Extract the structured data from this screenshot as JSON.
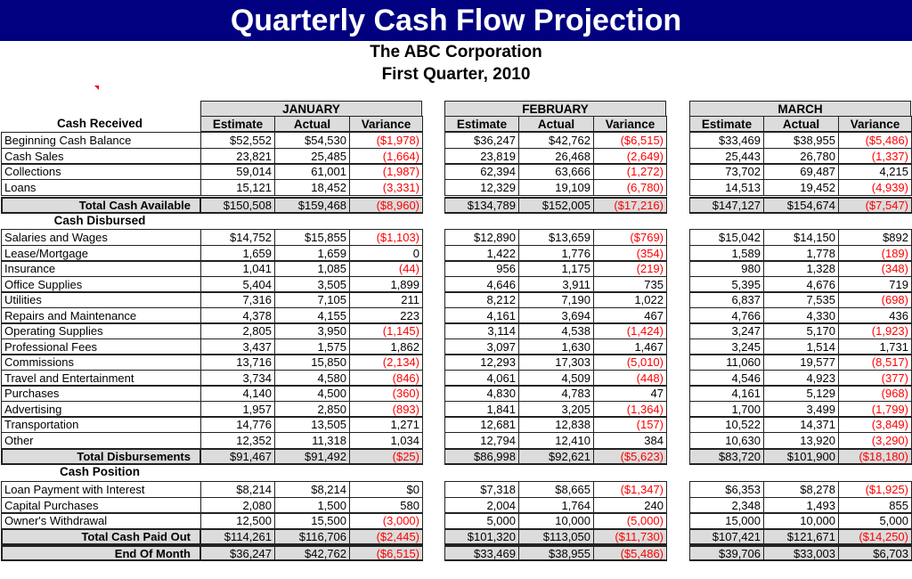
{
  "title": "Quarterly Cash Flow Projection",
  "company": "The ABC Corporation",
  "period": "First Quarter, 2010",
  "colors": {
    "title_bg": "#000080",
    "negative": "#ff0000",
    "total_bg": "#dcdcdc"
  },
  "months": [
    "JANUARY",
    "FEBRUARY",
    "MARCH"
  ],
  "subheaders": [
    "Estimate",
    "Actual",
    "Variance"
  ],
  "sections": [
    {
      "heading": "Cash Received",
      "rows": [
        {
          "label": "Beginning Cash Balance",
          "values": [
            "$52,552",
            "$54,530",
            "($1,978)",
            "$36,247",
            "$42,762",
            "($6,515)",
            "$33,469",
            "$38,955",
            "($5,486)"
          ]
        },
        {
          "label": "Cash Sales",
          "values": [
            "23,821",
            "25,485",
            "(1,664)",
            "23,819",
            "26,468",
            "(2,649)",
            "25,443",
            "26,780",
            "(1,337)"
          ]
        },
        {
          "label": "Collections",
          "values": [
            "59,014",
            "61,001",
            "(1,987)",
            "62,394",
            "63,666",
            "(1,272)",
            "73,702",
            "69,487",
            "4,215"
          ]
        },
        {
          "label": "Loans",
          "values": [
            "15,121",
            "18,452",
            "(3,331)",
            "12,329",
            "19,109",
            "(6,780)",
            "14,513",
            "19,452",
            "(4,939)"
          ]
        }
      ],
      "totals": [
        {
          "label": "Total Cash Available",
          "values": [
            "$150,508",
            "$159,468",
            "($8,960)",
            "$134,789",
            "$152,005",
            "($17,216)",
            "$147,127",
            "$154,674",
            "($7,547)"
          ]
        }
      ]
    },
    {
      "heading": "Cash Disbursed",
      "rows": [
        {
          "label": "Salaries and Wages",
          "values": [
            "$14,752",
            "$15,855",
            "($1,103)",
            "$12,890",
            "$13,659",
            "($769)",
            "$15,042",
            "$14,150",
            "$892"
          ]
        },
        {
          "label": "Lease/Mortgage",
          "values": [
            "1,659",
            "1,659",
            "0",
            "1,422",
            "1,776",
            "(354)",
            "1,589",
            "1,778",
            "(189)"
          ]
        },
        {
          "label": "Insurance",
          "values": [
            "1,041",
            "1,085",
            "(44)",
            "956",
            "1,175",
            "(219)",
            "980",
            "1,328",
            "(348)"
          ]
        },
        {
          "label": "Office Supplies",
          "values": [
            "5,404",
            "3,505",
            "1,899",
            "4,646",
            "3,911",
            "735",
            "5,395",
            "4,676",
            "719"
          ]
        },
        {
          "label": "Utilities",
          "values": [
            "7,316",
            "7,105",
            "211",
            "8,212",
            "7,190",
            "1,022",
            "6,837",
            "7,535",
            "(698)"
          ]
        },
        {
          "label": "Repairs and Maintenance",
          "values": [
            "4,378",
            "4,155",
            "223",
            "4,161",
            "3,694",
            "467",
            "4,766",
            "4,330",
            "436"
          ]
        },
        {
          "label": "Operating Supplies",
          "values": [
            "2,805",
            "3,950",
            "(1,145)",
            "3,114",
            "4,538",
            "(1,424)",
            "3,247",
            "5,170",
            "(1,923)"
          ]
        },
        {
          "label": "Professional Fees",
          "values": [
            "3,437",
            "1,575",
            "1,862",
            "3,097",
            "1,630",
            "1,467",
            "3,245",
            "1,514",
            "1,731"
          ]
        },
        {
          "label": "Commissions",
          "values": [
            "13,716",
            "15,850",
            "(2,134)",
            "12,293",
            "17,303",
            "(5,010)",
            "11,060",
            "19,577",
            "(8,517)"
          ]
        },
        {
          "label": "Travel and Entertainment",
          "values": [
            "3,734",
            "4,580",
            "(846)",
            "4,061",
            "4,509",
            "(448)",
            "4,546",
            "4,923",
            "(377)"
          ]
        },
        {
          "label": "Purchases",
          "values": [
            "4,140",
            "4,500",
            "(360)",
            "4,830",
            "4,783",
            "47",
            "4,161",
            "5,129",
            "(968)"
          ]
        },
        {
          "label": "Advertising",
          "values": [
            "1,957",
            "2,850",
            "(893)",
            "1,841",
            "3,205",
            "(1,364)",
            "1,700",
            "3,499",
            "(1,799)"
          ]
        },
        {
          "label": "Transportation",
          "values": [
            "14,776",
            "13,505",
            "1,271",
            "12,681",
            "12,838",
            "(157)",
            "10,522",
            "14,371",
            "(3,849)"
          ]
        },
        {
          "label": "Other",
          "values": [
            "12,352",
            "11,318",
            "1,034",
            "12,794",
            "12,410",
            "384",
            "10,630",
            "13,920",
            "(3,290)"
          ]
        }
      ],
      "totals": [
        {
          "label": "Total Disbursements",
          "values": [
            "$91,467",
            "$91,492",
            "($25)",
            "$86,998",
            "$92,621",
            "($5,623)",
            "$83,720",
            "$101,900",
            "($18,180)"
          ]
        }
      ]
    },
    {
      "heading": "Cash Position",
      "rows": [
        {
          "label": "Loan Payment with Interest",
          "values": [
            "$8,214",
            "$8,214",
            "$0",
            "$7,318",
            "$8,665",
            "($1,347)",
            "$6,353",
            "$8,278",
            "($1,925)"
          ]
        },
        {
          "label": "Capital Purchases",
          "values": [
            "2,080",
            "1,500",
            "580",
            "2,004",
            "1,764",
            "240",
            "2,348",
            "1,493",
            "855"
          ]
        },
        {
          "label": "Owner's Withdrawal",
          "values": [
            "12,500",
            "15,500",
            "(3,000)",
            "5,000",
            "10,000",
            "(5,000)",
            "15,000",
            "10,000",
            "5,000"
          ]
        }
      ],
      "totals": [
        {
          "label": "Total Cash Paid Out",
          "values": [
            "$114,261",
            "$116,706",
            "($2,445)",
            "$101,320",
            "$113,050",
            "($11,730)",
            "$107,421",
            "$121,671",
            "($14,250)"
          ]
        },
        {
          "label": "End Of Month",
          "values": [
            "$36,247",
            "$42,762",
            "($6,515)",
            "$33,469",
            "$38,955",
            "($5,486)",
            "$39,706",
            "$33,003",
            "$6,703"
          ]
        }
      ]
    }
  ]
}
